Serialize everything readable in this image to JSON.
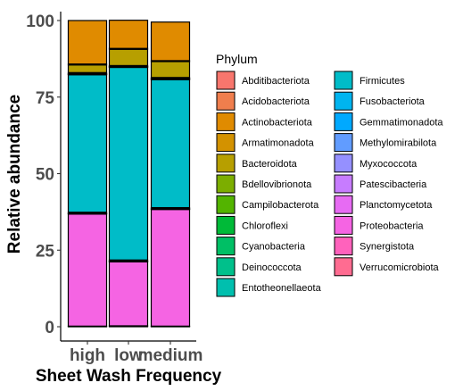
{
  "chart_data": {
    "type": "bar",
    "stacked": true,
    "categories": [
      "high",
      "low",
      "medium"
    ],
    "xlabel": "Sheet Wash Frequency",
    "ylabel": "Relative abundance",
    "ylim": [
      0,
      100
    ],
    "yticks": [
      0,
      25,
      50,
      75,
      100
    ],
    "grid": false,
    "legend": {
      "title": "Phylum",
      "position": "right",
      "columns": 2
    },
    "series": [
      {
        "name": "Abditibacteriota",
        "color": "#F8766D",
        "values": [
          0,
          0,
          0
        ]
      },
      {
        "name": "Acidobacteriota",
        "color": "#F07E4D",
        "values": [
          0,
          0,
          0
        ]
      },
      {
        "name": "Actinobacteriota",
        "color": "#E08B00",
        "values": [
          14.2,
          9.2,
          12.6
        ]
      },
      {
        "name": "Armatimonadota",
        "color": "#D39200",
        "values": [
          0.3,
          0.3,
          0.3
        ]
      },
      {
        "name": "Bacteroidota",
        "color": "#B79F00",
        "values": [
          2.5,
          5.3,
          5.2
        ]
      },
      {
        "name": "Bdellovibrionota",
        "color": "#7CAE00",
        "values": [
          0.3,
          0.2,
          0.3
        ]
      },
      {
        "name": "Campilobacterota",
        "color": "#53B400",
        "values": [
          0.1,
          0.1,
          0.1
        ]
      },
      {
        "name": "Chloroflexi",
        "color": "#00BA38",
        "values": [
          0.1,
          0.1,
          0.1
        ]
      },
      {
        "name": "Cyanobacteria",
        "color": "#00BF65",
        "values": [
          0.1,
          0.1,
          0.1
        ]
      },
      {
        "name": "Deinococcota",
        "color": "#00C08B",
        "values": [
          0.1,
          0.1,
          0.1
        ]
      },
      {
        "name": "Entotheonellaeota",
        "color": "#00BFAE",
        "values": [
          0,
          0,
          0
        ]
      },
      {
        "name": "Firmicutes",
        "color": "#00BCC8",
        "values": [
          44.9,
          62.9,
          41.8
        ]
      },
      {
        "name": "Fusobacteriota",
        "color": "#00B4EF",
        "values": [
          0.3,
          0.3,
          0.3
        ]
      },
      {
        "name": "Gemmatimonadota",
        "color": "#00A9FF",
        "values": [
          0,
          0,
          0
        ]
      },
      {
        "name": "Methylomirabilota",
        "color": "#619CFF",
        "values": [
          0,
          0,
          0
        ]
      },
      {
        "name": "Myxococcota",
        "color": "#9590FF",
        "values": [
          0.1,
          0.1,
          0.1
        ]
      },
      {
        "name": "Patescibacteria",
        "color": "#C77CFF",
        "values": [
          0.1,
          0.1,
          0.1
        ]
      },
      {
        "name": "Planctomycetota",
        "color": "#E76BF3",
        "values": [
          0.1,
          0.1,
          0.1
        ]
      },
      {
        "name": "Proteobacteria",
        "color": "#F564E3",
        "values": [
          36.6,
          20.9,
          38.1
        ]
      },
      {
        "name": "Synergistota",
        "color": "#FF62BC",
        "values": [
          0.1,
          0.1,
          0.1
        ]
      },
      {
        "name": "Verrucomicrobiota",
        "color": "#FF6C91",
        "values": [
          0.1,
          0.2,
          0.1
        ]
      }
    ]
  }
}
